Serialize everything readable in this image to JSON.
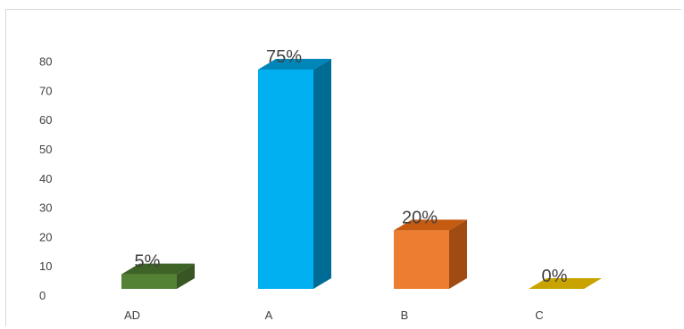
{
  "chart_data": {
    "type": "bar",
    "style": "3d-column",
    "categories": [
      "AD",
      "A",
      "B",
      "C"
    ],
    "values": [
      5,
      75,
      20,
      0
    ],
    "data_labels": [
      "5%",
      "75%",
      "20%",
      "0%"
    ],
    "yticks": [
      0,
      10,
      20,
      30,
      40,
      50,
      60,
      70,
      80
    ],
    "ylim": [
      0,
      80
    ],
    "grid": false,
    "legend": "none",
    "colors": {
      "AD": {
        "front": "#548235",
        "top": "#3e6327",
        "side": "#375623"
      },
      "A": {
        "front": "#00b0f0",
        "top": "#0086b8",
        "side": "#006b94"
      },
      "B": {
        "front": "#ed7d31",
        "top": "#c55a11",
        "side": "#a04b12"
      },
      "C": {
        "front": "#c9a400",
        "top": "#c9a400",
        "side": "#a88a00"
      }
    }
  }
}
